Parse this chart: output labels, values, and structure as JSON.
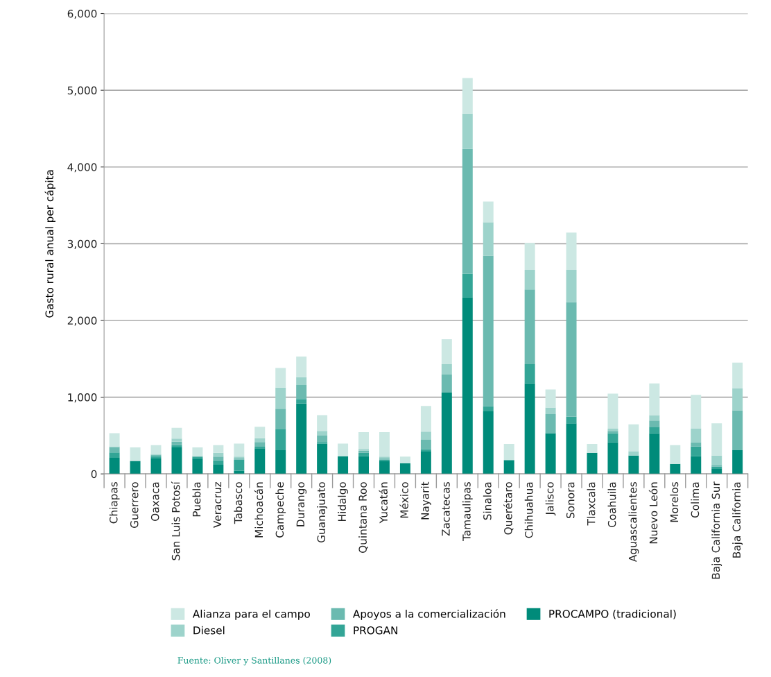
{
  "chart_data": {
    "type": "bar",
    "stacked": true,
    "ylabel": "Gasto rural anual per cápita",
    "categories": [
      "Chiapas",
      "Guerrero",
      "Oaxaca",
      "San Luis Potosí",
      "Puebla",
      "Veracruz",
      "Tabasco",
      "Michoacán",
      "Campeche",
      "Durango",
      "Guanajuato",
      "Hidalgo",
      "Quintana Roo",
      "Yucatán",
      "México",
      "Nayarit",
      "Zacatecas",
      "Tamaulipas",
      "Sinaloa",
      "Querétaro",
      "Chihuahua",
      "Jalisco",
      "Sonora",
      "Tlaxcala",
      "Coahuila",
      "Aguascalientes",
      "Nuevo León",
      "Morelos",
      "Colima",
      "Baja California Sur",
      "Baja California"
    ],
    "series": [
      {
        "name": "PROCAMPO (tradicional)",
        "color": "#008b7a",
        "values": [
          210,
          170,
          200,
          345,
          205,
          120,
          40,
          335,
          310,
          920,
          395,
          230,
          230,
          165,
          140,
          290,
          1060,
          2300,
          815,
          180,
          1180,
          530,
          660,
          275,
          410,
          240,
          530,
          130,
          230,
          65,
          310
        ]
      },
      {
        "name": "PROGAN",
        "color": "#33a596",
        "values": [
          70,
          0,
          30,
          30,
          15,
          55,
          145,
          20,
          270,
          55,
          20,
          0,
          45,
          20,
          0,
          30,
          0,
          310,
          65,
          0,
          250,
          0,
          85,
          0,
          120,
          0,
          85,
          0,
          130,
          30,
          0
        ]
      },
      {
        "name": "Apoyos a la comercialización",
        "color": "#6bbab0",
        "values": [
          70,
          0,
          20,
          45,
          10,
          50,
          20,
          60,
          270,
          185,
          85,
          0,
          30,
          20,
          0,
          125,
          235,
          1625,
          1965,
          0,
          975,
          250,
          1495,
          0,
          30,
          0,
          80,
          0,
          50,
          15,
          520
        ]
      },
      {
        "name": "Diesel",
        "color": "#9dd3cb",
        "values": [
          10,
          0,
          10,
          40,
          10,
          50,
          20,
          50,
          275,
          100,
          60,
          0,
          20,
          20,
          0,
          105,
          135,
          460,
          435,
          0,
          255,
          85,
          420,
          0,
          30,
          55,
          70,
          0,
          185,
          130,
          285
        ]
      },
      {
        "name": "Alianza para el campo",
        "color": "#cce8e3",
        "values": [
          170,
          175,
          115,
          140,
          105,
          100,
          170,
          150,
          255,
          270,
          205,
          165,
          220,
          320,
          85,
          335,
          325,
          465,
          270,
          210,
          350,
          235,
          485,
          115,
          455,
          350,
          415,
          245,
          435,
          420,
          335
        ]
      }
    ],
    "ylim": [
      0,
      6000
    ],
    "yticks": [
      0,
      {
        "value": 1000,
        "label": "1,000"
      },
      {
        "value": 2000,
        "label": "2,000"
      },
      {
        "value": 3000,
        "label": "3,000"
      },
      {
        "value": 4000,
        "label": "4,000"
      },
      {
        "value": 5000,
        "label": "5,000"
      },
      {
        "value": 6000,
        "label": "6,000"
      }
    ],
    "grid": "y",
    "legend": "bottom",
    "annotations": [
      "Fuente: Oliver y Santillanes (2008)"
    ]
  }
}
